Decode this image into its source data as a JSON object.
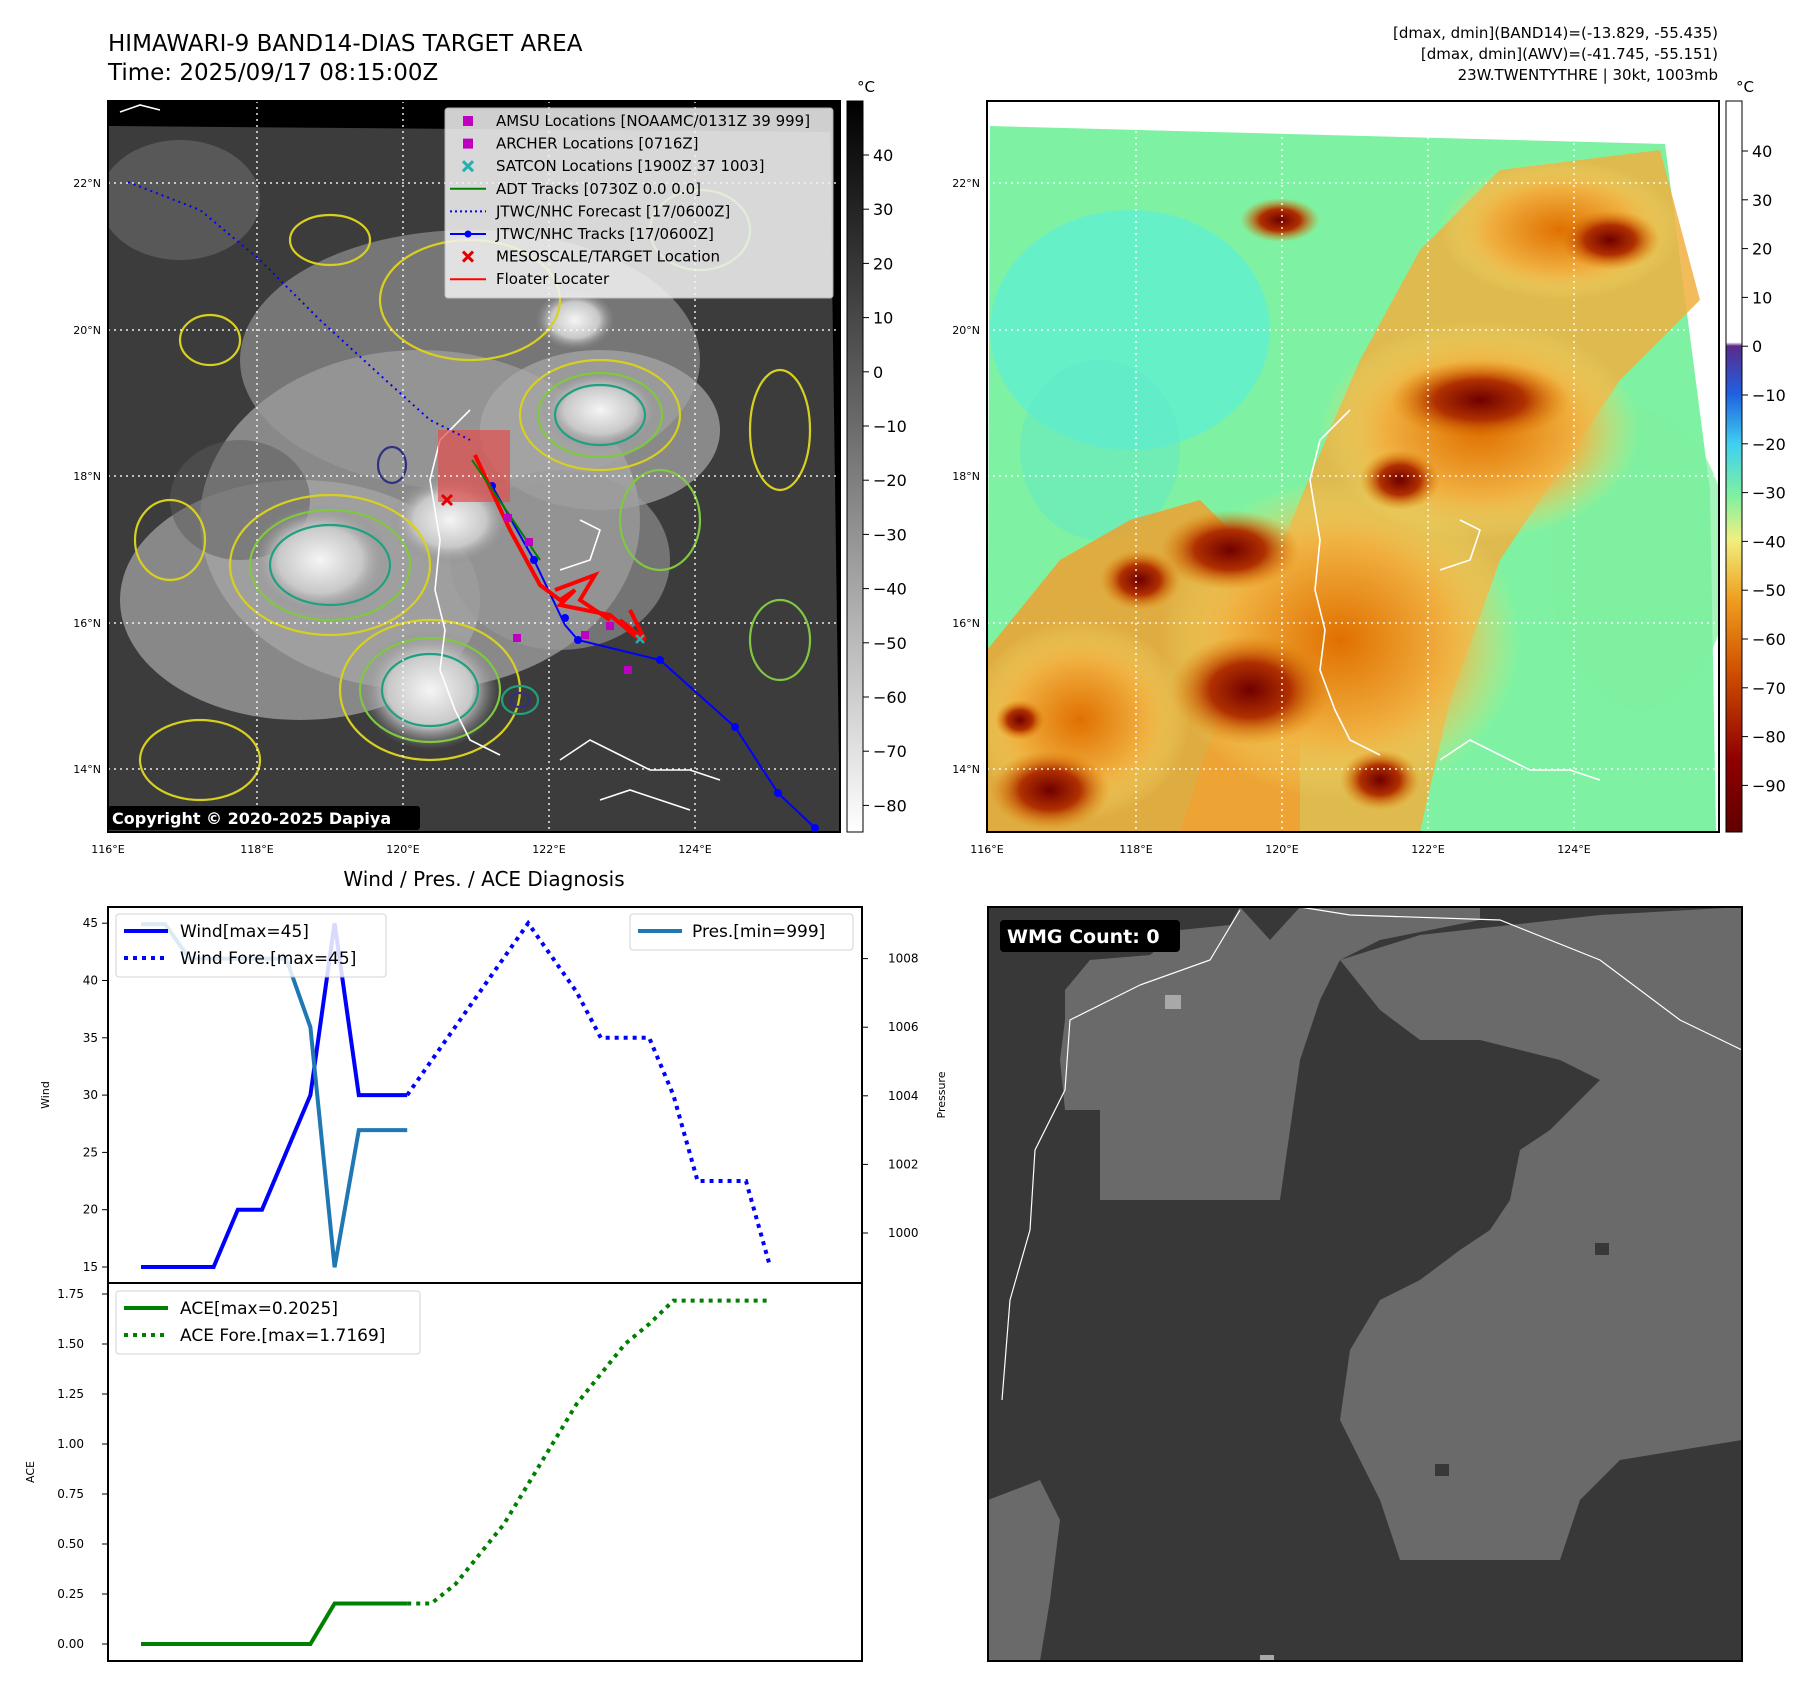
{
  "header": {
    "title_line1": "HIMAWARI-9 BAND14-DIAS TARGET AREA",
    "title_line2": "Time: 2025/09/17 08:15:00Z",
    "info_line1": "[dmax, dmin](BAND14)=(-13.829, -55.435)",
    "info_line2": "[dmax, dmin](AWV)=(-41.745, -55.151)",
    "info_line3": "23W.TWENTYTHRE | 30kt, 1003mb"
  },
  "map_axes": {
    "lon_ticks": [
      "116°E",
      "118°E",
      "120°E",
      "122°E",
      "124°E"
    ],
    "lat_ticks": [
      "22°N",
      "20°N",
      "18°N",
      "16°N",
      "14°N"
    ]
  },
  "band14_map": {
    "colorbar_unit": "°C",
    "colorbar_ticks": [
      "40",
      "30",
      "20",
      "10",
      "0",
      "−10",
      "−20",
      "−30",
      "−40",
      "−50",
      "−60",
      "−70",
      "−80"
    ],
    "copyright": "Copyright © 2020-2025 Dapiya",
    "legend": [
      {
        "label": "AMSU Locations [NOAAMC/0131Z 39 999]",
        "marker": "square",
        "color": "#c000c0"
      },
      {
        "label": "ARCHER Locations [0716Z]",
        "marker": "square",
        "color": "#c000c0"
      },
      {
        "label": "SATCON Locations [1900Z 37 1003]",
        "marker": "x",
        "color": "#20b0b0"
      },
      {
        "label": "ADT Tracks [0730Z 0.0 0.0]",
        "marker": "line",
        "color": "#008000"
      },
      {
        "label": "JTWC/NHC Forecast [17/0600Z]",
        "marker": "dotted",
        "color": "#0000ff"
      },
      {
        "label": "JTWC/NHC Tracks [17/0600Z]",
        "marker": "line-dot",
        "color": "#0000ff"
      },
      {
        "label": "MESOSCALE/TARGET Location",
        "marker": "x",
        "color": "#e00000"
      },
      {
        "label": "Floater Locater",
        "marker": "line",
        "color": "#ff0000"
      }
    ]
  },
  "awv_map": {
    "colorbar_unit": "°C",
    "colorbar_ticks": [
      "40",
      "30",
      "20",
      "10",
      "0",
      "−10",
      "−20",
      "−30",
      "−40",
      "−50",
      "−60",
      "−70",
      "−80",
      "−90"
    ]
  },
  "wmg_panel": {
    "label": "WMG Count: 0"
  },
  "chart_data": [
    {
      "type": "line",
      "title": "Wind / Pres. / ACE Diagnosis",
      "ylabel": "Wind",
      "y2label": "Pressure",
      "ylim": [
        14,
        46
      ],
      "y2lim": [
        999.0,
        1009.3
      ],
      "yticks": [
        15,
        20,
        25,
        30,
        35,
        40,
        45
      ],
      "y2ticks": [
        1000,
        1002,
        1004,
        1006,
        1008
      ],
      "x": [
        0,
        1,
        2,
        3,
        4,
        5,
        6,
        7,
        8,
        9,
        10,
        11,
        12,
        13,
        14,
        15,
        16,
        17,
        18,
        19,
        20,
        21,
        22,
        23,
        24,
        25,
        26
      ],
      "series": [
        {
          "name": "Wind[max=45]",
          "color": "#0000ff",
          "style": "solid",
          "x": [
            0,
            3,
            4,
            5,
            7,
            8,
            9,
            10,
            11
          ],
          "values": [
            15,
            15,
            20,
            20,
            30,
            45,
            30,
            30,
            30
          ]
        },
        {
          "name": "Wind Fore.[max=45]",
          "color": "#0000ff",
          "style": "dotted",
          "x": [
            11,
            12,
            13,
            14,
            15,
            16,
            17,
            18,
            19,
            20,
            21,
            22,
            23,
            24,
            25,
            26
          ],
          "values": [
            30,
            33,
            36,
            39,
            42,
            45,
            42,
            39,
            35,
            35,
            35,
            30,
            22.5,
            22.5,
            22.5,
            15
          ]
        },
        {
          "name": "Pres.[min=999]",
          "color": "#1f77b4",
          "style": "solid",
          "axis": "right",
          "x": [
            0,
            1,
            2,
            3,
            4,
            5,
            6,
            7,
            8,
            9,
            10,
            11
          ],
          "values": [
            1009,
            1009,
            1008,
            1008,
            1008,
            1008,
            1008,
            1006,
            999,
            1003,
            1003,
            1003
          ]
        }
      ]
    },
    {
      "type": "line",
      "ylabel": "ACE",
      "ylim": [
        -0.05,
        1.78
      ],
      "yticks": [
        "0.00",
        "0.25",
        "0.50",
        "0.75",
        "1.00",
        "1.25",
        "1.50",
        "1.75"
      ],
      "series": [
        {
          "name": "ACE[max=0.2025]",
          "color": "#008000",
          "style": "solid",
          "x": [
            0,
            7,
            8,
            9,
            10,
            11
          ],
          "values": [
            0,
            0,
            0.2025,
            0.2025,
            0.2025,
            0.2025
          ]
        },
        {
          "name": "ACE Fore.[max=1.7169]",
          "color": "#008000",
          "style": "dotted",
          "x": [
            11,
            12,
            13,
            14,
            15,
            16,
            17,
            18,
            19,
            20,
            21,
            22,
            23,
            24,
            25,
            26
          ],
          "values": [
            0.2025,
            0.2025,
            0.3,
            0.45,
            0.6,
            0.8,
            1.0,
            1.2,
            1.35,
            1.5,
            1.6,
            1.7169,
            1.7169,
            1.7169,
            1.7169,
            1.7169
          ]
        }
      ]
    }
  ]
}
